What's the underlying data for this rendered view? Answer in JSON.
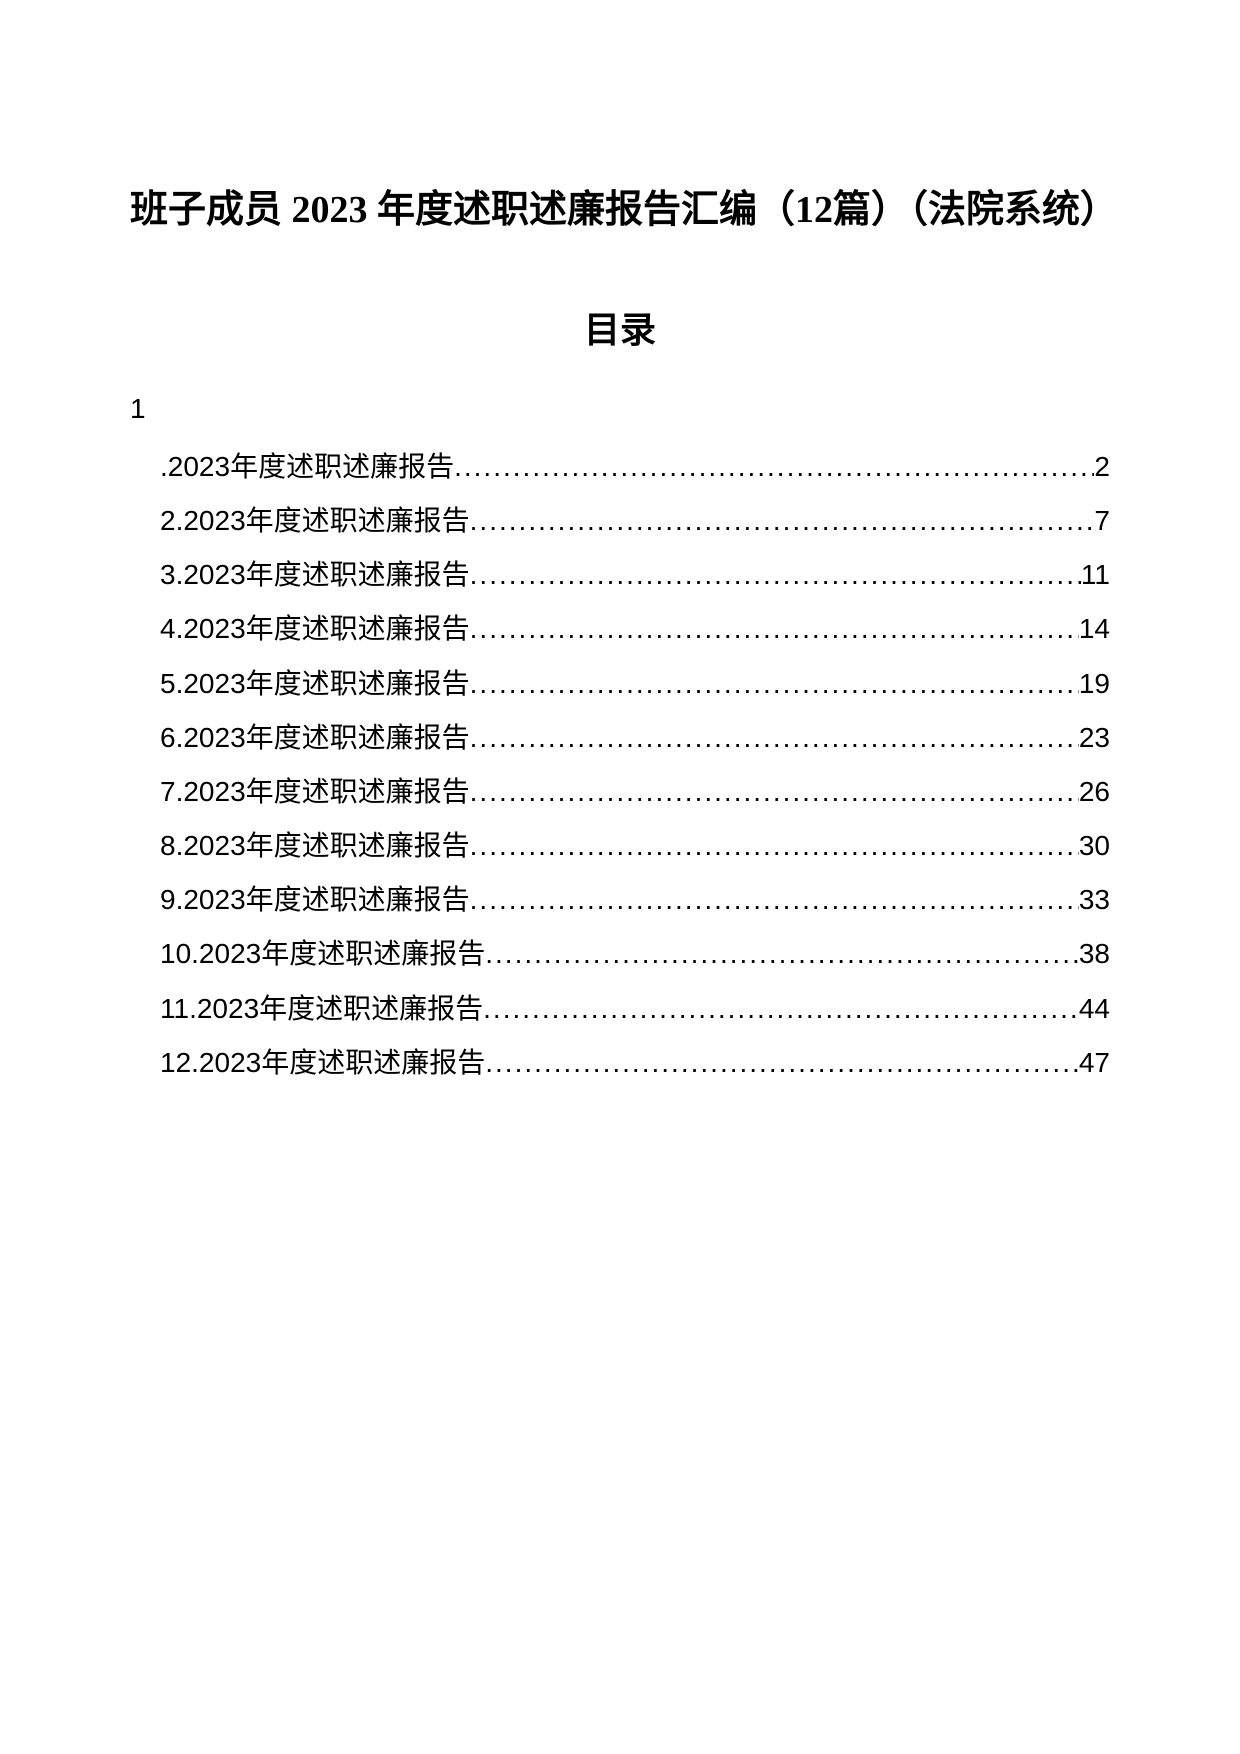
{
  "title": "班子成员 2023 年度述职述廉报告汇编（12篇）（法院系统）",
  "toc_heading": "目录",
  "prefix_1": "1",
  "entries": [
    {
      "prefix": ".2023 ",
      "label": "年度述职述廉报告",
      "page": "2"
    },
    {
      "prefix": "2.2023 ",
      "label": "年度述职述廉报告",
      "page": "7"
    },
    {
      "prefix": "3.2023 ",
      "label": "年度述职述廉报告",
      "page": "11"
    },
    {
      "prefix": "4.2023 ",
      "label": "年度述职述廉报告",
      "page": "14"
    },
    {
      "prefix": "5.2023 ",
      "label": "年度述职述廉报告",
      "page": "19"
    },
    {
      "prefix": "6.2023 ",
      "label": "年度述职述廉报告",
      "page": "23"
    },
    {
      "prefix": "7.2023 ",
      "label": "年度述职述廉报告",
      "page": "26"
    },
    {
      "prefix": "8.2023 ",
      "label": "年度述职述廉报告",
      "page": "30"
    },
    {
      "prefix": "9.2023 ",
      "label": "年度述职述廉报告",
      "page": "33"
    },
    {
      "prefix": "10.2023 ",
      "label": "年度述职述廉报告",
      "page": "38"
    },
    {
      "prefix": "11.2023 ",
      "label": "年度述职述廉报告",
      "page": "44"
    },
    {
      "prefix": "12.2023 ",
      "label": "年度述职述廉报告",
      "page": "47"
    }
  ]
}
